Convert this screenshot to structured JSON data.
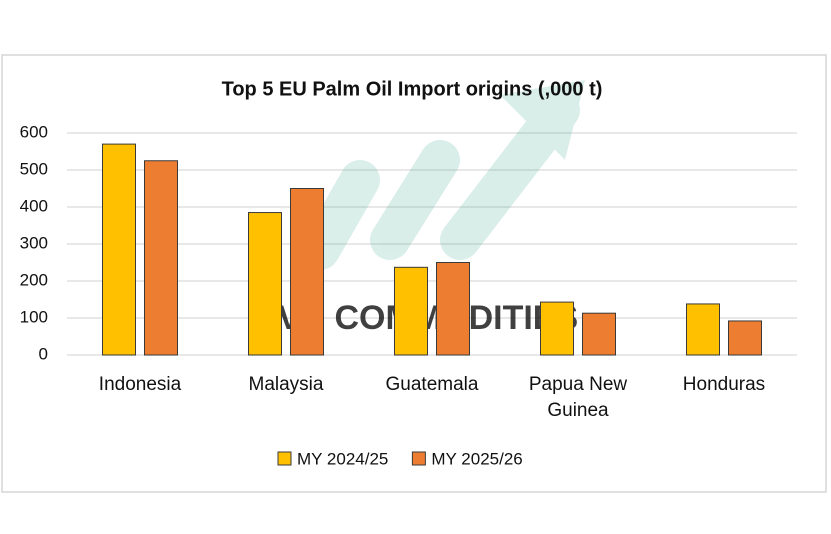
{
  "chart_data": {
    "type": "bar",
    "title": "Top 5 EU Palm Oil Import origins (,000 t)",
    "watermark": "VN COMMODITIES",
    "categories": [
      "Indonesia",
      "Malaysia",
      "Guatemala",
      "Papua New Guinea",
      "Honduras"
    ],
    "series": [
      {
        "name": "MY 2024/25",
        "color": "#FFC000",
        "values": [
          570,
          385,
          237,
          143,
          138
        ]
      },
      {
        "name": "MY 2025/26",
        "color": "#ED7D31",
        "values": [
          525,
          450,
          250,
          113,
          92
        ]
      }
    ],
    "ylim": [
      0,
      600
    ],
    "yticks": [
      0,
      100,
      200,
      300,
      400,
      500,
      600
    ],
    "grid": true,
    "legend": "bottom"
  }
}
